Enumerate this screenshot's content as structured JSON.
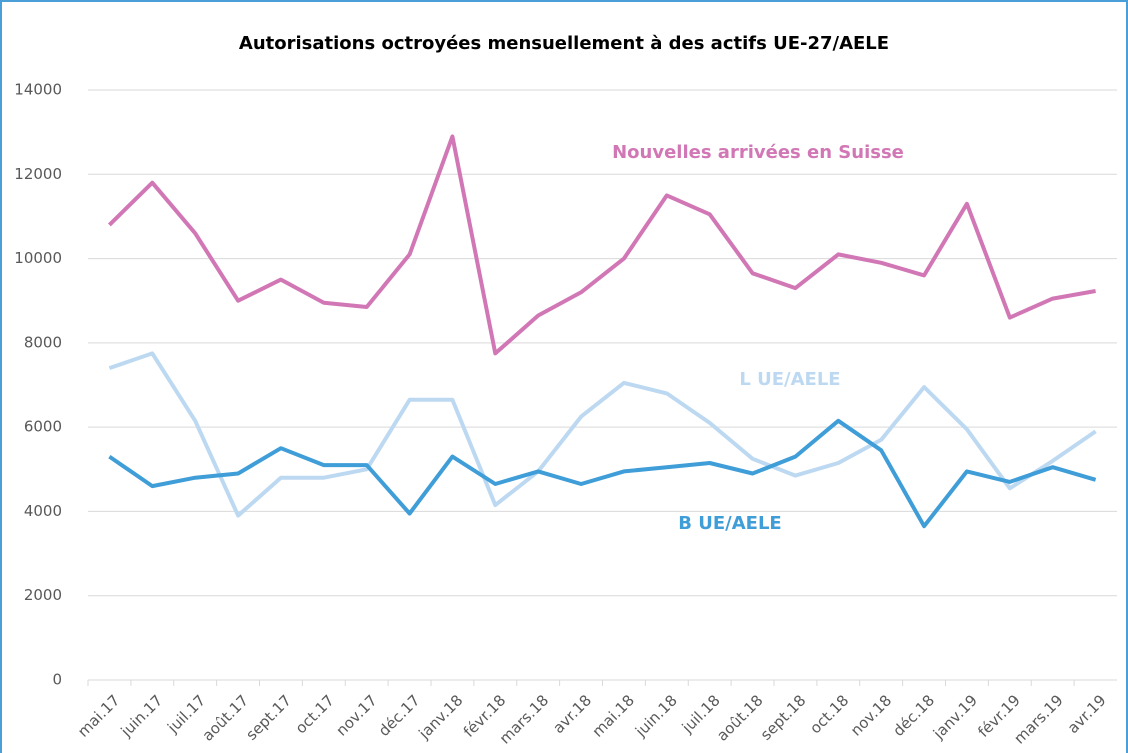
{
  "chart_data": {
    "type": "line",
    "title": "Autorisations octroyées mensuellement à des actifs UE-27/AELE",
    "categories": [
      "mai.17",
      "juin.17",
      "juil.17",
      "août.17",
      "sept.17",
      "oct.17",
      "nov.17",
      "déc.17",
      "janv.18",
      "févr.18",
      "mars.18",
      "avr.18",
      "mai.18",
      "juin.18",
      "juil.18",
      "août.18",
      "sept.18",
      "oct.18",
      "nov.18",
      "déc.18",
      "janv.19",
      "févr.19",
      "mars.19",
      "avr.19"
    ],
    "series": [
      {
        "name": "Nouvelles arrivées en Suisse",
        "color": "#d277b5",
        "values": [
          10800,
          11800,
          10600,
          9000,
          9500,
          8950,
          8850,
          10100,
          12900,
          7750,
          8650,
          9200,
          10000,
          11500,
          11050,
          9650,
          9300,
          10100,
          9900,
          9600,
          11300,
          8600,
          9050,
          9230
        ]
      },
      {
        "name": "L UE/AELE",
        "color": "#bdd9f2",
        "values": [
          7400,
          7750,
          6150,
          3900,
          4800,
          4800,
          5000,
          6650,
          6650,
          4150,
          4950,
          6250,
          7050,
          6800,
          6100,
          5250,
          4850,
          5150,
          5700,
          6950,
          5950,
          4550,
          5200,
          5900
        ]
      },
      {
        "name": "B UE/AELE",
        "color": "#3f9dd8",
        "values": [
          5300,
          4600,
          4800,
          4900,
          5500,
          5100,
          5100,
          3950,
          5300,
          4650,
          4950,
          4650,
          4950,
          5050,
          5150,
          4900,
          5300,
          6150,
          5450,
          3650,
          4950,
          4700,
          5050,
          4750
        ]
      }
    ],
    "ylim": [
      0,
      14000
    ],
    "yticks": [
      0,
      2000,
      4000,
      6000,
      8000,
      10000,
      12000,
      14000
    ],
    "grid": true
  }
}
